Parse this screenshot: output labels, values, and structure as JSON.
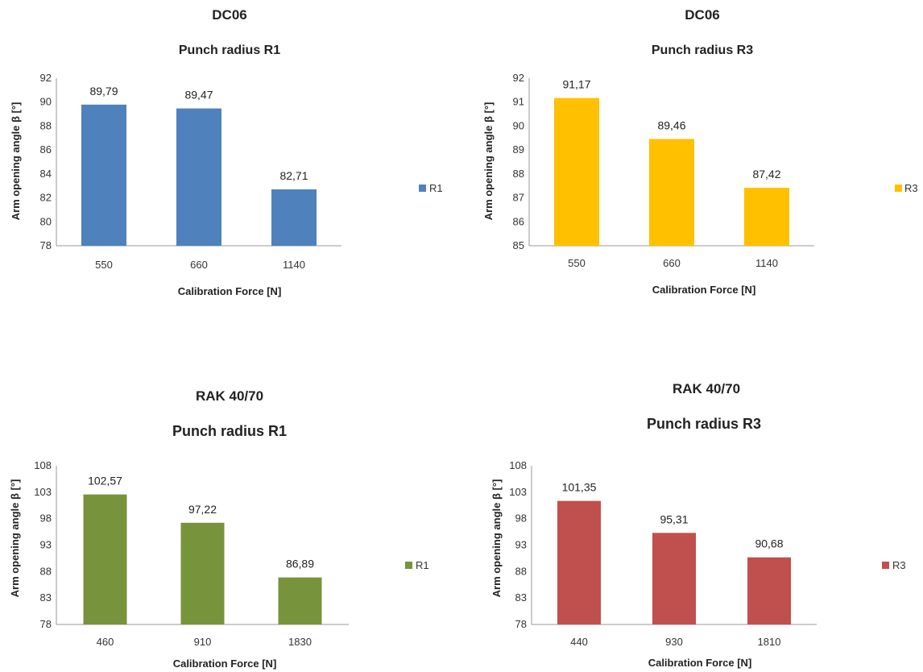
{
  "chart_data": [
    {
      "type": "bar",
      "title": "DC06",
      "subtitle": "Punch radius R1",
      "categories": [
        "550",
        "660",
        "1140"
      ],
      "series": [
        {
          "name": "R1",
          "values": [
            89.79,
            89.47,
            82.71
          ]
        }
      ],
      "value_labels": [
        "89,79",
        "89,47",
        "82,71"
      ],
      "xlabel": "Calibration Force [N]",
      "ylabel": "Arm opening angle β [°]",
      "ylim": [
        78,
        92
      ],
      "yticks": [
        78,
        80,
        82,
        84,
        86,
        88,
        90,
        92
      ],
      "grid": false,
      "legend_position": "right",
      "color": "#4f81bd"
    },
    {
      "type": "bar",
      "title": "DC06",
      "subtitle": "Punch radius R3",
      "categories": [
        "550",
        "660",
        "1140"
      ],
      "series": [
        {
          "name": "R3",
          "values": [
            91.17,
            89.46,
            87.42
          ]
        }
      ],
      "value_labels": [
        "91,17",
        "89,46",
        "87,42"
      ],
      "xlabel": "Calibration Force [N]",
      "ylabel": "Arm opening angle β [°]",
      "ylim": [
        85,
        92
      ],
      "yticks": [
        85,
        86,
        87,
        88,
        89,
        90,
        91,
        92
      ],
      "grid": false,
      "legend_position": "right",
      "color": "#ffc000"
    },
    {
      "type": "bar",
      "title": "RAK 40/70",
      "subtitle": "Punch radius  R1",
      "categories": [
        "460",
        "910",
        "1830"
      ],
      "series": [
        {
          "name": "R1",
          "values": [
            102.57,
            97.22,
            86.89
          ]
        }
      ],
      "value_labels": [
        "102,57",
        "97,22",
        "86,89"
      ],
      "xlabel": "Calibration Force [N]",
      "ylabel": "Arm opening angle β [°]",
      "ylim": [
        78,
        108
      ],
      "yticks": [
        78,
        83,
        88,
        93,
        98,
        103,
        108
      ],
      "grid": false,
      "legend_position": "right",
      "color": "#77933c"
    },
    {
      "type": "bar",
      "title": "RAK 40/70",
      "subtitle": "Punch radius  R3",
      "categories": [
        "440",
        "930",
        "1810"
      ],
      "series": [
        {
          "name": "R3",
          "values": [
            101.35,
            95.31,
            90.68
          ]
        }
      ],
      "value_labels": [
        "101,35",
        "95,31",
        "90,68"
      ],
      "xlabel": "Calibration Force [N]",
      "ylabel": "Arm opening angle β [°]",
      "ylim": [
        78,
        108
      ],
      "yticks": [
        78,
        83,
        88,
        93,
        98,
        103,
        108
      ],
      "grid": false,
      "legend_position": "right",
      "color": "#c0504d"
    }
  ]
}
